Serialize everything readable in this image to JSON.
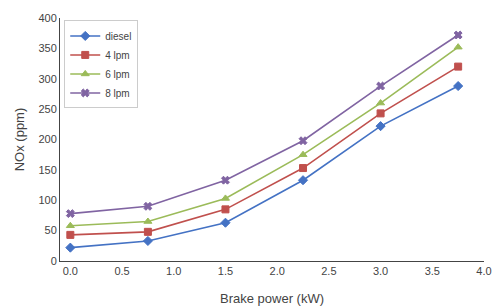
{
  "chart_data": {
    "type": "line",
    "xlabel": "Brake power (kW)",
    "ylabel": "NOx (ppm)",
    "x": [
      0,
      0.75,
      1.5,
      2.25,
      3.0,
      3.75
    ],
    "series": [
      {
        "name": "diesel",
        "color": "#4472C4",
        "marker": "diamond",
        "values": [
          22,
          33,
          63,
          133,
          222,
          288
        ]
      },
      {
        "name": "4 lpm",
        "color": "#C0504D",
        "marker": "square",
        "values": [
          43,
          48,
          85,
          153,
          243,
          320
        ]
      },
      {
        "name": "6 lpm",
        "color": "#9BBB59",
        "marker": "triangle-up",
        "values": [
          58,
          65,
          103,
          175,
          260,
          352
        ]
      },
      {
        "name": "8 lpm",
        "color": "#8064A2",
        "marker": "x",
        "values": [
          78,
          90,
          133,
          198,
          288,
          372
        ]
      }
    ],
    "xlim": [
      -0.1,
      4.0
    ],
    "ylim": [
      0,
      400
    ],
    "xticks": [
      {
        "value": 0,
        "label": "0.0"
      },
      0.5,
      {
        "value": 1,
        "label": "1.0"
      },
      1.5,
      {
        "value": 2,
        "label": "2.0"
      },
      2.5,
      {
        "value": 3,
        "label": "3.0"
      },
      3.5,
      {
        "value": 4,
        "label": "4.0"
      }
    ],
    "yticks": [
      0,
      50,
      100,
      150,
      200,
      250,
      300,
      350,
      400
    ],
    "grid": false,
    "legend": "upper left"
  }
}
